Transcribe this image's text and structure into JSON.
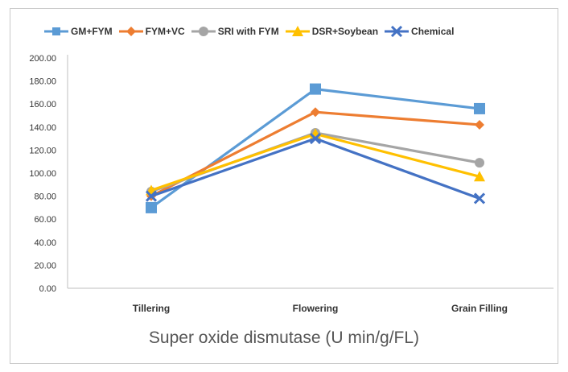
{
  "chart_data": {
    "type": "line",
    "title": "",
    "xlabel": "Super oxide dismutase (U min/g/FL)",
    "ylabel": "",
    "categories": [
      "Tillering",
      "Flowering",
      "Grain Filling"
    ],
    "ylim": [
      0,
      200
    ],
    "yticks": [
      "0.00",
      "20.00",
      "40.00",
      "60.00",
      "80.00",
      "100.00",
      "120.00",
      "140.00",
      "160.00",
      "180.00",
      "200.00"
    ],
    "grid": false,
    "legend_position": "top",
    "series": [
      {
        "name": "GM+FYM",
        "values": [
          70,
          173,
          156
        ],
        "color": "#5b9bd5",
        "marker": "square"
      },
      {
        "name": "FYM+VC",
        "values": [
          80,
          153,
          142
        ],
        "color": "#ed7d31",
        "marker": "diamond"
      },
      {
        "name": "SRI with FYM",
        "values": [
          84,
          135,
          109
        ],
        "color": "#a5a5a5",
        "marker": "circle"
      },
      {
        "name": "DSR+Soybean",
        "values": [
          85,
          134,
          97
        ],
        "color": "#ffc000",
        "marker": "triangle"
      },
      {
        "name": "Chemical",
        "values": [
          80,
          130,
          78
        ],
        "color": "#4472c4",
        "marker": "x"
      }
    ]
  }
}
